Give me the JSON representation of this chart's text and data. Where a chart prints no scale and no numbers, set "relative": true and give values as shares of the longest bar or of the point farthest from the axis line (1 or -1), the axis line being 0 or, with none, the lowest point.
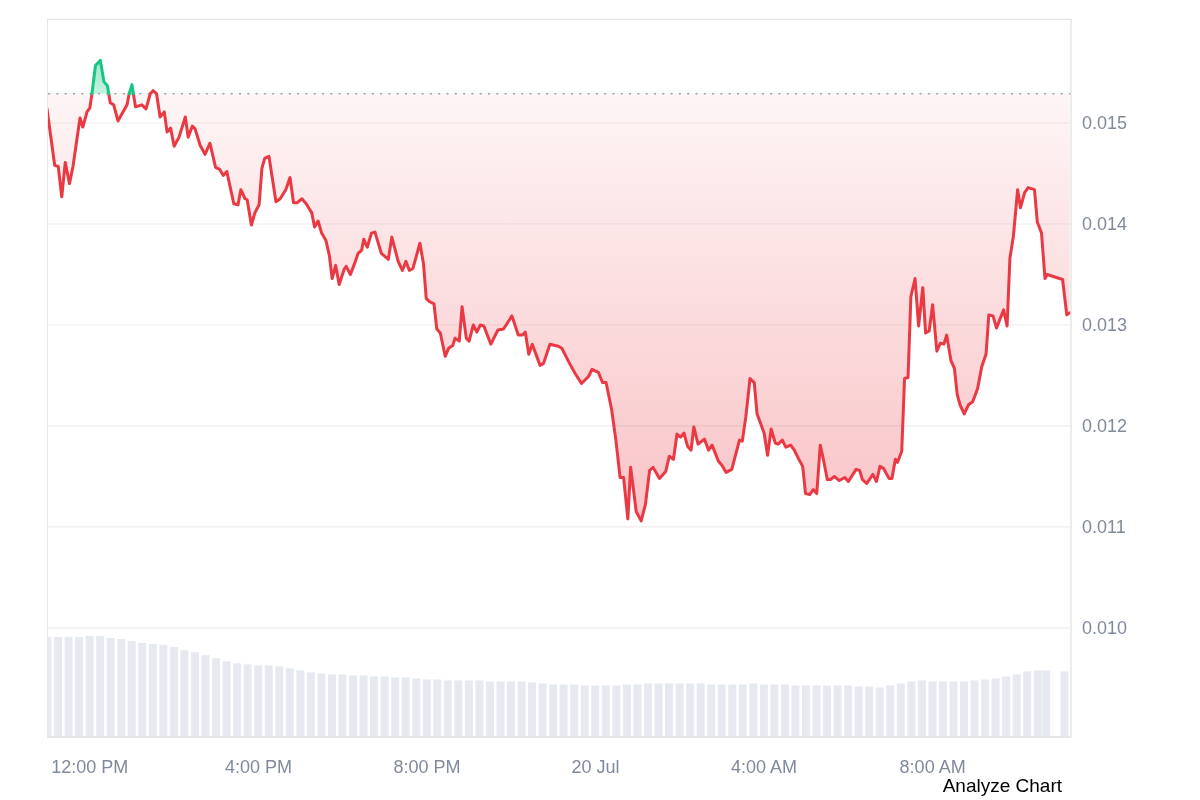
{
  "chart_data": [
    {
      "type": "line",
      "xlim": [
        "--07-19T10:59",
        "--07-20T11:17"
      ],
      "xticks": [
        {
          "value": "--07-19T12:00",
          "label": "12:00 PM"
        },
        {
          "value": "--07-19T16:00",
          "label": "4:00 PM"
        },
        {
          "value": "--07-19T20:00",
          "label": "8:00 PM"
        },
        {
          "value": "--07-20",
          "label": "20 Jul"
        },
        {
          "value": "--07-20T04:00",
          "label": "4:00 AM"
        },
        {
          "value": "--07-20T08:00",
          "label": "8:00 AM"
        }
      ],
      "ylim": [
        0.00892,
        0.01603
      ],
      "yticks": [
        {
          "value": 0.01,
          "label": "0.010"
        },
        0.011,
        0.012,
        0.013,
        0.014,
        0.015
      ],
      "grid": "y",
      "ref_lines": [
        {
          "axis": "y",
          "value": 0.01529,
          "line_style": "dotted",
          "color": "#9e9e9e"
        }
      ],
      "annotations": [
        "Analyze Chart"
      ],
      "series": [
        {
          "color": "#ea3943",
          "x": [
            "--07-19T10:59",
            "--07-19T11:10",
            "--07-19T11:15",
            "--07-19T11:20",
            "--07-19T11:25",
            "--07-19T11:31",
            "--07-19T11:36",
            "--07-19T11:46",
            "--07-19T11:50",
            "--07-19T11:56",
            "--07-19T12:00",
            "--07-19T12:03",
            "--07-19T12:08",
            "--07-19T12:15",
            "--07-19T12:20",
            "--07-19T12:25",
            "--07-19T12:27",
            "--07-19T12:29",
            "--07-19T12:34",
            "--07-19T12:40",
            "--07-19T12:53",
            "--07-19T12:56",
            "--07-19T13:00",
            "--07-19T13:02",
            "--07-19T13:05",
            "--07-19T13:14",
            "--07-19T13:20",
            "--07-19T13:26",
            "--07-19T13:30",
            "--07-19T13:35",
            "--07-19T13:40",
            "--07-19T13:46",
            "--07-19T13:50",
            "--07-19T13:55",
            "--07-19T14:00",
            "--07-19T14:07",
            "--07-19T14:16",
            "--07-19T14:20",
            "--07-19T14:26",
            "--07-19T14:30",
            "--07-19T14:37",
            "--07-19T14:44",
            "--07-19T14:51",
            "--07-19T14:59",
            "--07-19T15:05",
            "--07-19T15:10",
            "--07-19T15:15",
            "--07-19T15:25",
            "--07-19T15:31",
            "--07-19T15:35",
            "--07-19T15:41",
            "--07-19T15:44",
            "--07-19T15:50",
            "--07-19T15:55",
            "--07-19T16:01",
            "--07-19T16:05",
            "--07-19T16:09",
            "--07-19T16:15",
            "--07-19T16:25",
            "--07-19T16:31",
            "--07-19T16:39",
            "--07-19T16:45",
            "--07-19T16:50",
            "--07-19T16:55",
            "--07-19T17:02",
            "--07-19T17:08",
            "--07-19T17:16",
            "--07-19T17:20",
            "--07-19T17:25",
            "--07-19T17:30",
            "--07-19T17:36",
            "--07-19T17:41",
            "--07-19T17:45",
            "--07-19T17:50",
            "--07-19T17:55",
            "--07-19T18:02",
            "--07-19T18:05",
            "--07-19T18:11",
            "--07-19T18:17",
            "--07-19T18:22",
            "--07-19T18:27",
            "--07-19T18:30",
            "--07-19T18:35",
            "--07-19T18:41",
            "--07-19T18:46",
            "--07-19T18:55",
            "--07-19T19:05",
            "--07-19T19:10",
            "--07-19T19:19",
            "--07-19T19:25",
            "--07-19T19:30",
            "--07-19T19:35",
            "--07-19T19:40",
            "--07-19T19:50",
            "--07-19T19:55",
            "--07-19T19:59",
            "--07-19T20:04",
            "--07-19T20:10",
            "--07-19T20:14",
            "--07-19T20:19",
            "--07-19T20:26",
            "--07-19T20:31",
            "--07-19T20:37",
            "--07-19T20:40",
            "--07-19T20:46",
            "--07-19T20:50",
            "--07-19T20:56",
            "--07-19T21:00",
            "--07-19T21:06",
            "--07-19T21:11",
            "--07-19T21:16",
            "--07-19T21:21",
            "--07-19T21:31",
            "--07-19T21:41",
            "--07-19T21:49",
            "--07-19T22:01",
            "--07-19T22:10",
            "--07-19T22:16",
            "--07-19T22:20",
            "--07-19T22:25",
            "--07-19T22:30",
            "--07-19T22:41",
            "--07-19T22:46",
            "--07-19T22:55",
            "--07-19T23:07",
            "--07-19T23:12",
            "--07-19T23:23",
            "--07-19T23:31",
            "--07-19T23:40",
            "--07-19T23:50",
            "--07-19T23:55",
            "--07-20T00:04",
            "--07-20T00:10",
            "--07-20T00:15",
            "--07-20T00:23",
            "--07-20T00:29",
            "--07-20T00:35",
            "--07-20T00:40",
            "--07-20T00:46",
            "--07-20T00:50",
            "--07-20T00:58",
            "--07-20T01:05",
            "--07-20T01:11",
            "--07-20T01:17",
            "--07-20T01:22",
            "--07-20T01:31",
            "--07-20T01:40",
            "--07-20T01:45",
            "--07-20T01:51",
            "--07-20T01:56",
            "--07-20T02:01",
            "--07-20T02:06",
            "--07-20T02:11",
            "--07-20T02:16",
            "--07-20T02:20",
            "--07-20T02:26",
            "--07-20T02:35",
            "--07-20T02:41",
            "--07-20T02:46",
            "--07-20T02:55",
            "--07-20T03:00",
            "--07-20T03:06",
            "--07-20T03:14",
            "--07-20T03:25",
            "--07-20T03:29",
            "--07-20T03:34",
            "--07-20T03:40",
            "--07-20T03:46",
            "--07-20T03:50",
            "--07-20T04:00",
            "--07-20T04:05",
            "--07-20T04:10",
            "--07-20T04:16",
            "--07-20T04:20",
            "--07-20T04:26",
            "--07-20T04:31",
            "--07-20T04:38",
            "--07-20T04:43",
            "--07-20T04:51",
            "--07-20T04:55",
            "--07-20T04:59",
            "--07-20T05:05",
            "--07-20T05:10",
            "--07-20T05:15",
            "--07-20T05:20",
            "--07-20T05:25",
            "--07-20T05:30",
            "--07-20T05:35",
            "--07-20T05:40",
            "--07-20T05:47",
            "--07-20T05:55",
            "--07-20T06:00",
            "--07-20T06:11",
            "--07-20T06:16",
            "--07-20T06:20",
            "--07-20T06:26",
            "--07-20T06:35",
            "--07-20T06:40",
            "--07-20T06:45",
            "--07-20T06:50",
            "--07-20T06:58",
            "--07-20T07:02",
            "--07-20T07:07",
            "--07-20T07:10",
            "--07-20T07:16",
            "--07-20T07:20",
            "--07-20T07:25",
            "--07-20T07:29",
            "--07-20T07:35",
            "--07-20T07:40",
            "--07-20T07:46",
            "--07-20T07:50",
            "--07-20T07:55",
            "--07-20T08:00",
            "--07-20T08:06",
            "--07-20T08:11",
            "--07-20T08:16",
            "--07-20T08:20",
            "--07-20T08:26",
            "--07-20T08:31",
            "--07-20T08:35",
            "--07-20T08:39",
            "--07-20T08:45",
            "--07-20T08:51",
            "--07-20T08:57",
            "--07-20T09:04",
            "--07-20T09:10",
            "--07-20T09:16",
            "--07-20T09:20",
            "--07-20T09:26",
            "--07-20T09:31",
            "--07-20T09:41",
            "--07-20T09:46",
            "--07-20T09:50",
            "--07-20T09:55",
            "--07-20T10:01",
            "--07-20T10:05",
            "--07-20T10:11",
            "--07-20T10:16",
            "--07-20T10:25",
            "--07-20T10:29",
            "--07-20T10:35",
            "--07-20T10:40",
            "--07-20T10:43",
            "--07-20T11:05",
            "--07-20T11:11",
            "--07-20T11:15"
          ],
          "values": [
            0.01514,
            0.01458,
            0.01457,
            0.01427,
            0.01461,
            0.0144,
            0.01457,
            0.01505,
            0.01496,
            0.01511,
            0.01515,
            0.01529,
            null,
            null,
            null,
            null,
            0.01529,
            0.0152,
            0.01518,
            0.01502,
            0.01518,
            0.01529,
            null,
            0.01529,
            0.01516,
            0.01518,
            0.01514,
            0.01529,
            0.01532,
            0.01529,
            0.01506,
            0.01511,
            0.01491,
            0.01495,
            0.01477,
            0.01486,
            0.01506,
            0.01486,
            0.01497,
            0.01494,
            0.01478,
            0.01469,
            0.0148,
            0.01456,
            0.01454,
            0.01448,
            0.01452,
            0.0142,
            0.01419,
            0.01434,
            0.01425,
            0.01424,
            0.01399,
            0.01411,
            0.01419,
            0.01455,
            0.01465,
            0.01467,
            0.01422,
            0.01425,
            0.01434,
            0.01446,
            0.01421,
            0.01421,
            0.01425,
            0.0142,
            0.01411,
            0.01397,
            0.01403,
            0.01391,
            0.01384,
            0.01369,
            0.01346,
            0.01359,
            0.0134,
            0.01355,
            0.01358,
            0.0135,
            0.01361,
            0.01371,
            0.01374,
            0.01385,
            0.01377,
            0.01391,
            0.01392,
            0.01371,
            0.01365,
            0.01387,
            0.01363,
            0.01354,
            0.01363,
            0.01354,
            0.01356,
            0.01381,
            0.01361,
            0.01326,
            0.01323,
            0.01321,
            0.01296,
            0.01292,
            0.01269,
            0.01277,
            0.0128,
            0.01287,
            0.01284,
            0.01318,
            0.01287,
            0.01284,
            0.013,
            0.01293,
            0.013,
            0.01299,
            0.01281,
            0.01295,
            0.01296,
            0.01309,
            0.0129,
            0.0129,
            0.01293,
            0.01271,
            0.01281,
            0.0126,
            0.01262,
            0.01281,
            0.01279,
            0.01277,
            0.01262,
            0.01252,
            0.01242,
            0.01249,
            0.01256,
            0.01253,
            0.01243,
            0.01243,
            0.01216,
            0.01186,
            0.01149,
            0.01149,
            0.01108,
            0.01159,
            0.01115,
            0.01106,
            0.01122,
            0.01156,
            0.01159,
            0.01148,
            0.01155,
            0.0117,
            0.01167,
            0.01192,
            0.01189,
            0.01193,
            0.0118,
            0.01176,
            0.01199,
            0.01182,
            0.01187,
            0.01176,
            0.01181,
            0.01165,
            0.01161,
            0.01154,
            0.01157,
            0.01186,
            0.01185,
            0.01209,
            0.01247,
            0.01243,
            0.01212,
            0.01193,
            0.01171,
            0.01197,
            0.01183,
            0.01182,
            0.01186,
            0.01179,
            0.01181,
            0.01176,
            0.01165,
            0.0116,
            0.01133,
            0.01132,
            0.01137,
            0.01133,
            0.01181,
            0.01165,
            0.01147,
            0.01147,
            0.0115,
            0.01146,
            0.01149,
            0.01145,
            0.01157,
            0.01156,
            0.01147,
            0.01143,
            0.01152,
            0.01145,
            0.0116,
            0.01158,
            0.01148,
            0.01148,
            0.01167,
            0.01164,
            0.01175,
            0.01247,
            0.01248,
            0.01328,
            0.01346,
            0.01299,
            0.01337,
            0.01292,
            0.01294,
            0.0132,
            0.01274,
            0.01282,
            0.01281,
            0.0129,
            0.01265,
            0.01257,
            0.01231,
            0.01221,
            0.01212,
            0.01221,
            0.01224,
            0.01237,
            0.01259,
            0.01271,
            0.0131,
            0.01309,
            0.01297,
            0.01315,
            0.01299,
            0.01366,
            0.01388,
            0.01434,
            0.01416,
            0.01431,
            0.01436,
            0.01434,
            0.01402,
            0.01391,
            0.01346,
            0.0135,
            0.01345,
            0.0131,
            0.01312
          ],
          "lower": [
            0.01514,
            0.01458,
            0.01457,
            0.01427,
            0.01461,
            0.0144,
            0.01457,
            0.01505,
            0.01496,
            0.01511,
            0.01515,
            0.01529,
            0.01529,
            0.01529,
            0.01529,
            0.01529,
            0.01529,
            0.0152,
            0.01518,
            0.01502,
            0.01518,
            0.01529,
            0.01529,
            0.01529,
            0.01516,
            0.01518,
            0.01514,
            0.01529,
            0.01529,
            0.01529,
            0.01506,
            0.01511,
            0.01491,
            0.01495,
            0.01477,
            0.01486,
            0.01506,
            0.01486,
            0.01497,
            0.01494,
            0.01478,
            0.01469,
            0.0148,
            0.01456,
            0.01454,
            0.01448,
            0.01452,
            0.0142,
            0.01419,
            0.01434,
            0.01425,
            0.01424,
            0.01399,
            0.01411,
            0.01419,
            0.01455,
            0.01465,
            0.01467,
            0.01422,
            0.01425,
            0.01434,
            0.01446,
            0.01421,
            0.01421,
            0.01425,
            0.0142,
            0.01411,
            0.01397,
            0.01403,
            0.01391,
            0.01384,
            0.01369,
            0.01346,
            0.01359,
            0.0134,
            0.01355,
            0.01358,
            0.0135,
            0.01361,
            0.01371,
            0.01374,
            0.01385,
            0.01377,
            0.01391,
            0.01392,
            0.01371,
            0.01365,
            0.01387,
            0.01363,
            0.01354,
            0.01363,
            0.01354,
            0.01356,
            0.01381,
            0.01361,
            0.01326,
            0.01323,
            0.01321,
            0.01296,
            0.01292,
            0.01269,
            0.01277,
            0.0128,
            0.01287,
            0.01284,
            0.01318,
            0.01287,
            0.01284,
            0.013,
            0.01293,
            0.013,
            0.01299,
            0.01281,
            0.01295,
            0.01296,
            0.01309,
            0.0129,
            0.0129,
            0.01293,
            0.01271,
            0.01281,
            0.0126,
            0.01262,
            0.01281,
            0.01279,
            0.01277,
            0.01262,
            0.01252,
            0.01242,
            0.01249,
            0.01256,
            0.01253,
            0.01243,
            0.01243,
            0.01216,
            0.01186,
            0.01149,
            0.01149,
            0.01108,
            0.01159,
            0.01115,
            0.01106,
            0.01122,
            0.01156,
            0.01159,
            0.01148,
            0.01155,
            0.0117,
            0.01167,
            0.01192,
            0.01189,
            0.01193,
            0.0118,
            0.01176,
            0.01199,
            0.01182,
            0.01187,
            0.01176,
            0.01181,
            0.01165,
            0.01161,
            0.01154,
            0.01157,
            0.01186,
            0.01185,
            0.01209,
            0.01247,
            0.01243,
            0.01212,
            0.01193,
            0.01171,
            0.01197,
            0.01183,
            0.01182,
            0.01186,
            0.01179,
            0.01181,
            0.01176,
            0.01165,
            0.0116,
            0.01133,
            0.01132,
            0.01137,
            0.01133,
            0.01181,
            0.01165,
            0.01147,
            0.01147,
            0.0115,
            0.01146,
            0.01149,
            0.01145,
            0.01157,
            0.01156,
            0.01147,
            0.01143,
            0.01152,
            0.01145,
            0.0116,
            0.01158,
            0.01148,
            0.01148,
            0.01167,
            0.01164,
            0.01175,
            0.01247,
            0.01248,
            0.01328,
            0.01346,
            0.01299,
            0.01337,
            0.01292,
            0.01294,
            0.0132,
            0.01274,
            0.01282,
            0.01281,
            0.0129,
            0.01265,
            0.01257,
            0.01231,
            0.01221,
            0.01212,
            0.01221,
            0.01224,
            0.01237,
            0.01259,
            0.01271,
            0.0131,
            0.01309,
            0.01297,
            0.01315,
            0.01299,
            0.01366,
            0.01388,
            0.01434,
            0.01416,
            0.01431,
            0.01436,
            0.01434,
            0.01402,
            0.01391,
            0.01346,
            0.0135,
            0.01345,
            0.0131,
            0.01312
          ],
          "upper": [
            0.01529,
            0.01529,
            0.01529,
            0.01529,
            0.01529,
            0.01529,
            0.01529,
            0.01529,
            0.01529,
            0.01529,
            0.01529,
            0.01529,
            0.01557,
            0.01562,
            0.01541,
            0.01537,
            0.01529,
            0.01529,
            0.01529,
            0.01529,
            0.01529,
            0.01529,
            0.01538,
            0.01529,
            0.01529,
            0.01529,
            0.01529,
            0.01529,
            0.01532,
            0.01529,
            0.01529,
            0.01529,
            0.01529,
            0.01529,
            0.01529,
            0.01529,
            0.01529,
            0.01529,
            0.01529,
            0.01529,
            0.01529,
            0.01529,
            0.01529,
            0.01529,
            0.01529,
            0.01529,
            0.01529,
            0.01529,
            0.01529,
            0.01529,
            0.01529,
            0.01529,
            0.01529,
            0.01529,
            0.01529,
            0.01529,
            0.01529,
            0.01529,
            0.01529,
            0.01529,
            0.01529,
            0.01529,
            0.01529,
            0.01529,
            0.01529,
            0.01529,
            0.01529,
            0.01529,
            0.01529,
            0.01529,
            0.01529,
            0.01529,
            0.01529,
            0.01529,
            0.01529,
            0.01529,
            0.01529,
            0.01529,
            0.01529,
            0.01529,
            0.01529,
            0.01529,
            0.01529,
            0.01529,
            0.01529,
            0.01529,
            0.01529,
            0.01529,
            0.01529,
            0.01529,
            0.01529,
            0.01529,
            0.01529,
            0.01529,
            0.01529,
            0.01529,
            0.01529,
            0.01529,
            0.01529,
            0.01529,
            0.01529,
            0.01529,
            0.01529,
            0.01529,
            0.01529,
            0.01529,
            0.01529,
            0.01529,
            0.01529,
            0.01529,
            0.01529,
            0.01529,
            0.01529,
            0.01529,
            0.01529,
            0.01529,
            0.01529,
            0.01529,
            0.01529,
            0.01529,
            0.01529,
            0.01529,
            0.01529,
            0.01529,
            0.01529,
            0.01529,
            0.01529,
            0.01529,
            0.01529,
            0.01529,
            0.01529,
            0.01529,
            0.01529,
            0.01529,
            0.01529,
            0.01529,
            0.01529,
            0.01529,
            0.01529,
            0.01529,
            0.01529,
            0.01529,
            0.01529,
            0.01529,
            0.01529,
            0.01529,
            0.01529,
            0.01529,
            0.01529,
            0.01529,
            0.01529,
            0.01529,
            0.01529,
            0.01529,
            0.01529,
            0.01529,
            0.01529,
            0.01529,
            0.01529,
            0.01529,
            0.01529,
            0.01529,
            0.01529,
            0.01529,
            0.01529,
            0.01529,
            0.01529,
            0.01529,
            0.01529,
            0.01529,
            0.01529,
            0.01529,
            0.01529,
            0.01529,
            0.01529,
            0.01529,
            0.01529,
            0.01529,
            0.01529,
            0.01529,
            0.01529,
            0.01529,
            0.01529,
            0.01529,
            0.01529,
            0.01529,
            0.01529,
            0.01529,
            0.01529,
            0.01529,
            0.01529,
            0.01529,
            0.01529,
            0.01529,
            0.01529,
            0.01529,
            0.01529,
            0.01529,
            0.01529,
            0.01529,
            0.01529,
            0.01529,
            0.01529,
            0.01529,
            0.01529,
            0.01529,
            0.01529,
            0.01529,
            0.01529,
            0.01529,
            0.01529,
            0.01529,
            0.01529,
            0.01529,
            0.01529,
            0.01529,
            0.01529,
            0.01529,
            0.01529,
            0.01529,
            0.01529,
            0.01529,
            0.01529,
            0.01529,
            0.01529,
            0.01529,
            0.01529,
            0.01529,
            0.01529,
            0.01529,
            0.01529,
            0.01529,
            0.01529,
            0.01529,
            0.01529,
            0.01529,
            0.01529,
            0.01529,
            0.01529,
            0.01529,
            0.01529,
            0.01529,
            0.01529,
            0.01529,
            0.01529,
            0.01529,
            0.01529
          ]
        },
        {
          "color": "#16c784",
          "x": [
            "--07-19T12:03",
            "--07-19T12:08",
            "--07-19T12:15",
            "--07-19T12:20",
            "--07-19T12:25",
            "--07-19T12:27",
            "--07-19T12:42",
            "--07-19T12:56",
            "--07-19T13:00",
            "--07-19T13:02"
          ],
          "values": [
            0.01529,
            0.01557,
            0.01562,
            0.01541,
            0.01537,
            0.01529,
            null,
            0.01529,
            0.01538,
            0.01529
          ]
        }
      ]
    },
    {
      "type": "bar",
      "relative": true,
      "tick_labels": false,
      "color": "#e6eaf0",
      "xlim": [
        "--07-19T10:59",
        "--07-20T11:17"
      ],
      "x": [
        "--07-19T11:00",
        "--07-19T11:15",
        "--07-19T11:30",
        "--07-19T11:45",
        "--07-19T12:00",
        "--07-19T12:15",
        "--07-19T12:30",
        "--07-19T12:45",
        "--07-19T13:00",
        "--07-19T13:15",
        "--07-19T13:30",
        "--07-19T13:45",
        "--07-19T14:00",
        "--07-19T14:15",
        "--07-19T14:30",
        "--07-19T14:45",
        "--07-19T15:00",
        "--07-19T15:15",
        "--07-19T15:30",
        "--07-19T15:45",
        "--07-19T16:00",
        "--07-19T16:15",
        "--07-19T16:30",
        "--07-19T16:45",
        "--07-19T17:00",
        "--07-19T17:15",
        "--07-19T17:30",
        "--07-19T17:45",
        "--07-19T18:00",
        "--07-19T18:15",
        "--07-19T18:30",
        "--07-19T18:45",
        "--07-19T19:00",
        "--07-19T19:15",
        "--07-19T19:30",
        "--07-19T19:45",
        "--07-19T20:00",
        "--07-19T20:15",
        "--07-19T20:30",
        "--07-19T20:45",
        "--07-19T21:00",
        "--07-19T21:15",
        "--07-19T21:30",
        "--07-19T21:45",
        "--07-19T22:00",
        "--07-19T22:15",
        "--07-19T22:30",
        "--07-19T22:45",
        "--07-19T23:00",
        "--07-19T23:15",
        "--07-19T23:30",
        "--07-19T23:45",
        "--07-20T00:00",
        "--07-20T00:15",
        "--07-20T00:30",
        "--07-20T00:45",
        "--07-20T01:00",
        "--07-20T01:15",
        "--07-20T01:30",
        "--07-20T01:45",
        "--07-20T02:00",
        "--07-20T02:15",
        "--07-20T02:30",
        "--07-20T02:45",
        "--07-20T03:00",
        "--07-20T03:15",
        "--07-20T03:30",
        "--07-20T03:45",
        "--07-20T04:00",
        "--07-20T04:15",
        "--07-20T04:30",
        "--07-20T04:45",
        "--07-20T05:00",
        "--07-20T05:15",
        "--07-20T05:30",
        "--07-20T05:45",
        "--07-20T06:00",
        "--07-20T06:15",
        "--07-20T06:30",
        "--07-20T06:45",
        "--07-20T07:00",
        "--07-20T07:15",
        "--07-20T07:30",
        "--07-20T07:45",
        "--07-20T08:00",
        "--07-20T08:15",
        "--07-20T08:30",
        "--07-20T08:45",
        "--07-20T09:00",
        "--07-20T09:15",
        "--07-20T09:30",
        "--07-20T09:45",
        "--07-20T10:00",
        "--07-20T10:15",
        "--07-20T10:30",
        "--07-20T10:42",
        "--07-20T11:08"
      ],
      "values": [
        0.99,
        0.99,
        0.99,
        0.99,
        1,
        1,
        0.98,
        0.97,
        0.95,
        0.93,
        0.92,
        0.91,
        0.89,
        0.86,
        0.84,
        0.81,
        0.78,
        0.75,
        0.73,
        0.72,
        0.71,
        0.71,
        0.7,
        0.68,
        0.66,
        0.64,
        0.63,
        0.62,
        0.62,
        0.61,
        0.61,
        0.6,
        0.6,
        0.59,
        0.59,
        0.58,
        0.57,
        0.57,
        0.56,
        0.56,
        0.56,
        0.56,
        0.55,
        0.55,
        0.55,
        0.55,
        0.54,
        0.53,
        0.52,
        0.52,
        0.52,
        0.51,
        0.51,
        0.51,
        0.51,
        0.52,
        0.52,
        0.53,
        0.53,
        0.53,
        0.53,
        0.53,
        0.53,
        0.52,
        0.52,
        0.52,
        0.52,
        0.53,
        0.52,
        0.52,
        0.52,
        0.51,
        0.51,
        0.51,
        0.51,
        0.51,
        0.51,
        0.5,
        0.5,
        0.49,
        0.51,
        0.53,
        0.55,
        0.56,
        0.55,
        0.55,
        0.55,
        0.55,
        0.56,
        0.57,
        0.58,
        0.6,
        0.62,
        0.65,
        0.66,
        0.66,
        0.65
      ]
    }
  ]
}
